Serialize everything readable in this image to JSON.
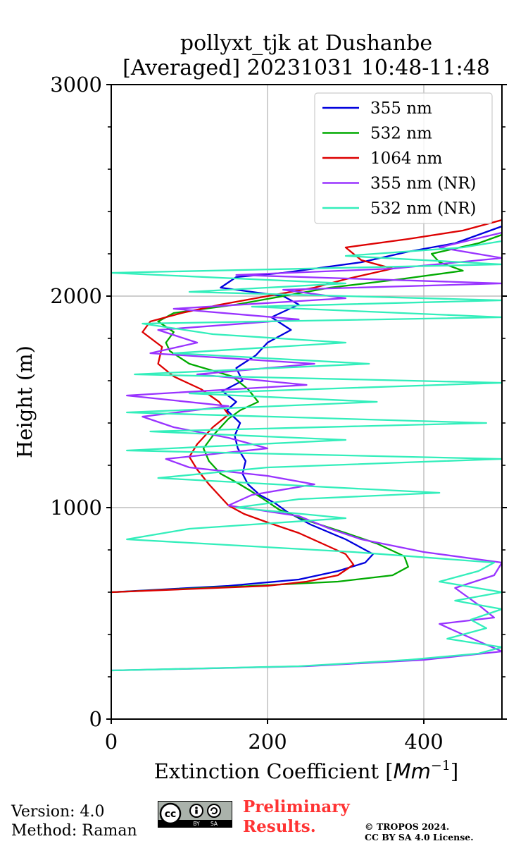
{
  "chart_data": {
    "type": "line",
    "title": "pollyxt_tjk at Dushanbe",
    "subtitle": "[Averaged] 20231031 10:48-11:48",
    "xlabel_prefix": "Extinction Coefficient [",
    "xlabel_unit": "Mm",
    "xlabel_exp": "−1",
    "xlabel_suffix": "]",
    "ylabel": "Height (m)",
    "xlim": [
      0,
      500
    ],
    "ylim": [
      0,
      3000
    ],
    "xticks": [
      0,
      200,
      400
    ],
    "xtick_labels": [
      "0",
      "200",
      "400"
    ],
    "yticks": [
      0,
      1000,
      2000,
      3000
    ],
    "ytick_labels": [
      "0",
      "1000",
      "2000",
      "3000"
    ],
    "grid": true,
    "legend_position": "top-right",
    "series": [
      {
        "name": "355 nm",
        "color": "#0000dd",
        "points": [
          [
            0,
            600
          ],
          [
            150,
            630
          ],
          [
            240,
            660
          ],
          [
            290,
            700
          ],
          [
            325,
            740
          ],
          [
            335,
            780
          ],
          [
            300,
            850
          ],
          [
            255,
            920
          ],
          [
            225,
            980
          ],
          [
            210,
            1020
          ],
          [
            190,
            1060
          ],
          [
            175,
            1110
          ],
          [
            168,
            1160
          ],
          [
            172,
            1220
          ],
          [
            162,
            1280
          ],
          [
            158,
            1340
          ],
          [
            165,
            1400
          ],
          [
            148,
            1460
          ],
          [
            160,
            1500
          ],
          [
            142,
            1550
          ],
          [
            168,
            1600
          ],
          [
            160,
            1660
          ],
          [
            185,
            1720
          ],
          [
            200,
            1780
          ],
          [
            230,
            1840
          ],
          [
            205,
            1900
          ],
          [
            240,
            1960
          ],
          [
            220,
            2000
          ],
          [
            140,
            2040
          ],
          [
            160,
            2090
          ],
          [
            220,
            2110
          ],
          [
            260,
            2130
          ],
          [
            320,
            2160
          ],
          [
            380,
            2210
          ],
          [
            440,
            2250
          ],
          [
            470,
            2290
          ],
          [
            500,
            2330
          ]
        ]
      },
      {
        "name": "532 nm",
        "color": "#00aa00",
        "points": [
          [
            0,
            600
          ],
          [
            180,
            630
          ],
          [
            290,
            650
          ],
          [
            360,
            680
          ],
          [
            380,
            720
          ],
          [
            375,
            770
          ],
          [
            340,
            830
          ],
          [
            300,
            880
          ],
          [
            250,
            940
          ],
          [
            215,
            990
          ],
          [
            195,
            1040
          ],
          [
            178,
            1080
          ],
          [
            160,
            1120
          ],
          [
            140,
            1160
          ],
          [
            125,
            1220
          ],
          [
            118,
            1280
          ],
          [
            130,
            1340
          ],
          [
            140,
            1380
          ],
          [
            150,
            1420
          ],
          [
            165,
            1460
          ],
          [
            188,
            1500
          ],
          [
            175,
            1560
          ],
          [
            155,
            1620
          ],
          [
            100,
            1680
          ],
          [
            75,
            1740
          ],
          [
            70,
            1780
          ],
          [
            80,
            1830
          ],
          [
            60,
            1880
          ],
          [
            80,
            1920
          ],
          [
            160,
            1960
          ],
          [
            220,
            2000
          ],
          [
            280,
            2040
          ],
          [
            370,
            2080
          ],
          [
            450,
            2120
          ],
          [
            420,
            2160
          ],
          [
            410,
            2200
          ],
          [
            470,
            2250
          ],
          [
            500,
            2290
          ]
        ]
      },
      {
        "name": "1064 nm",
        "color": "#dd0000",
        "points": [
          [
            0,
            600
          ],
          [
            200,
            630
          ],
          [
            250,
            650
          ],
          [
            290,
            680
          ],
          [
            310,
            730
          ],
          [
            300,
            780
          ],
          [
            270,
            830
          ],
          [
            240,
            880
          ],
          [
            200,
            930
          ],
          [
            170,
            970
          ],
          [
            150,
            1010
          ],
          [
            140,
            1050
          ],
          [
            125,
            1110
          ],
          [
            110,
            1180
          ],
          [
            100,
            1240
          ],
          [
            110,
            1300
          ],
          [
            120,
            1340
          ],
          [
            130,
            1380
          ],
          [
            150,
            1440
          ],
          [
            138,
            1500
          ],
          [
            115,
            1560
          ],
          [
            80,
            1620
          ],
          [
            60,
            1680
          ],
          [
            65,
            1760
          ],
          [
            40,
            1830
          ],
          [
            50,
            1880
          ],
          [
            90,
            1920
          ],
          [
            140,
            1960
          ],
          [
            200,
            2000
          ],
          [
            260,
            2040
          ],
          [
            300,
            2080
          ],
          [
            360,
            2130
          ],
          [
            320,
            2170
          ],
          [
            300,
            2230
          ],
          [
            380,
            2270
          ],
          [
            450,
            2310
          ],
          [
            500,
            2360
          ]
        ]
      },
      {
        "name": "355 nm (NR)",
        "color": "#9933ff",
        "points": [
          [
            0,
            230
          ],
          [
            250,
            250
          ],
          [
            400,
            280
          ],
          [
            500,
            320
          ],
          [
            450,
            400
          ],
          [
            420,
            450
          ],
          [
            490,
            480
          ],
          [
            470,
            540
          ],
          [
            440,
            620
          ],
          [
            490,
            680
          ],
          [
            500,
            740
          ],
          [
            400,
            790
          ],
          [
            320,
            850
          ],
          [
            280,
            900
          ],
          [
            240,
            960
          ],
          [
            150,
            1010
          ],
          [
            180,
            1060
          ],
          [
            260,
            1110
          ],
          [
            200,
            1150
          ],
          [
            100,
            1190
          ],
          [
            70,
            1230
          ],
          [
            200,
            1280
          ],
          [
            150,
            1330
          ],
          [
            80,
            1380
          ],
          [
            40,
            1430
          ],
          [
            150,
            1480
          ],
          [
            20,
            1530
          ],
          [
            250,
            1580
          ],
          [
            110,
            1630
          ],
          [
            260,
            1680
          ],
          [
            50,
            1730
          ],
          [
            110,
            1780
          ],
          [
            60,
            1840
          ],
          [
            240,
            1890
          ],
          [
            80,
            1940
          ],
          [
            300,
            1990
          ],
          [
            220,
            2030
          ],
          [
            500,
            2060
          ],
          [
            160,
            2100
          ],
          [
            360,
            2130
          ],
          [
            500,
            2180
          ],
          [
            420,
            2230
          ],
          [
            500,
            2300
          ]
        ]
      },
      {
        "name": "532 nm (NR)",
        "color": "#33eebb",
        "points": [
          [
            0,
            230
          ],
          [
            240,
            250
          ],
          [
            380,
            280
          ],
          [
            470,
            310
          ],
          [
            500,
            340
          ],
          [
            430,
            380
          ],
          [
            480,
            430
          ],
          [
            460,
            470
          ],
          [
            500,
            520
          ],
          [
            440,
            560
          ],
          [
            500,
            600
          ],
          [
            420,
            650
          ],
          [
            470,
            700
          ],
          [
            490,
            740
          ],
          [
            310,
            790
          ],
          [
            20,
            850
          ],
          [
            100,
            900
          ],
          [
            300,
            950
          ],
          [
            160,
            1000
          ],
          [
            240,
            1040
          ],
          [
            420,
            1070
          ],
          [
            260,
            1100
          ],
          [
            60,
            1140
          ],
          [
            200,
            1190
          ],
          [
            500,
            1230
          ],
          [
            20,
            1270
          ],
          [
            300,
            1320
          ],
          [
            50,
            1360
          ],
          [
            480,
            1400
          ],
          [
            20,
            1450
          ],
          [
            340,
            1500
          ],
          [
            100,
            1540
          ],
          [
            500,
            1590
          ],
          [
            30,
            1630
          ],
          [
            330,
            1680
          ],
          [
            80,
            1730
          ],
          [
            300,
            1780
          ],
          [
            130,
            1820
          ],
          [
            40,
            1870
          ],
          [
            500,
            1900
          ],
          [
            180,
            1950
          ],
          [
            500,
            1980
          ],
          [
            100,
            2020
          ],
          [
            300,
            2060
          ],
          [
            0,
            2110
          ],
          [
            500,
            2150
          ],
          [
            300,
            2190
          ],
          [
            450,
            2230
          ],
          [
            500,
            2260
          ]
        ]
      }
    ]
  },
  "footer": {
    "version": "Version: 4.0",
    "method": "Method: Raman",
    "cc_label": "cc",
    "cc_by": "BY",
    "cc_sa": "SA",
    "prelim_line1": "Preliminary",
    "prelim_line2": "Results.",
    "copyright_line1": "© TROPOS 2024.",
    "copyright_line2": "CC BY SA 4.0 License."
  }
}
